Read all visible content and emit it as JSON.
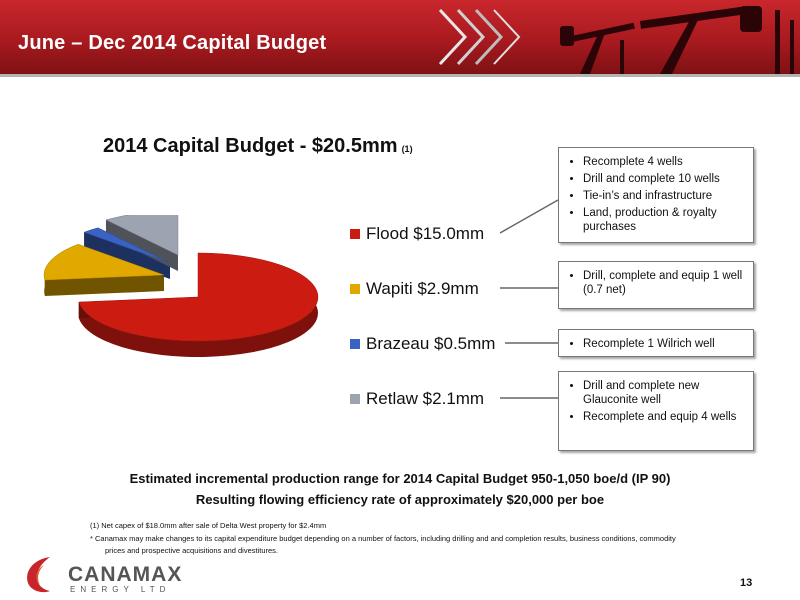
{
  "header": {
    "title": "June – Dec 2014 Capital Budget"
  },
  "chart_data": {
    "type": "pie",
    "title": "2014 Capital Budget - $20.5mm",
    "title_note": "(1)",
    "slices": [
      {
        "label": "Flood $15.0mm",
        "value": 15.0,
        "color": "#cc1c12"
      },
      {
        "label": "Wapiti $2.9mm",
        "value": 2.9,
        "color": "#e1a800"
      },
      {
        "label": "Brazeau $0.5mm",
        "value": 0.5,
        "color": "#3a62c2"
      },
      {
        "label": "Retlaw $2.1mm",
        "value": 2.1,
        "color": "#9ea3b2"
      }
    ],
    "legend_position": "right"
  },
  "callouts": [
    {
      "bullets": [
        "Recomplete 4 wells",
        "Drill and complete 10 wells",
        "Tie-in’s and infrastructure",
        "Land, production & royalty purchases"
      ]
    },
    {
      "bullets": [
        "Drill, complete and equip 1 well (0.7 net)"
      ]
    },
    {
      "bullets": [
        "Recomplete 1 Wilrich well"
      ]
    },
    {
      "bullets": [
        "Drill and complete new Glauconite well",
        "Recomplete and equip 4 wells"
      ]
    }
  ],
  "summary": {
    "line1": "Estimated incremental production range for 2014 Capital Budget 950-1,050 boe/d (IP 90)",
    "line2": "Resulting flowing efficiency rate of approximately $20,000 per boe"
  },
  "footnotes": {
    "note1": "(1) Net capex of $18.0mm after sale of Delta West property for $2.4mm",
    "note2": "*   Canamax may make changes to its capital expenditure budget depending on a number of factors, including drilling and and completion results, business conditions, commodity",
    "note3": "prices and prospective acquisitions and divestitures."
  },
  "logo": {
    "name": "CANAMAX",
    "sub": "ENERGY LTD"
  },
  "page_number": "13"
}
